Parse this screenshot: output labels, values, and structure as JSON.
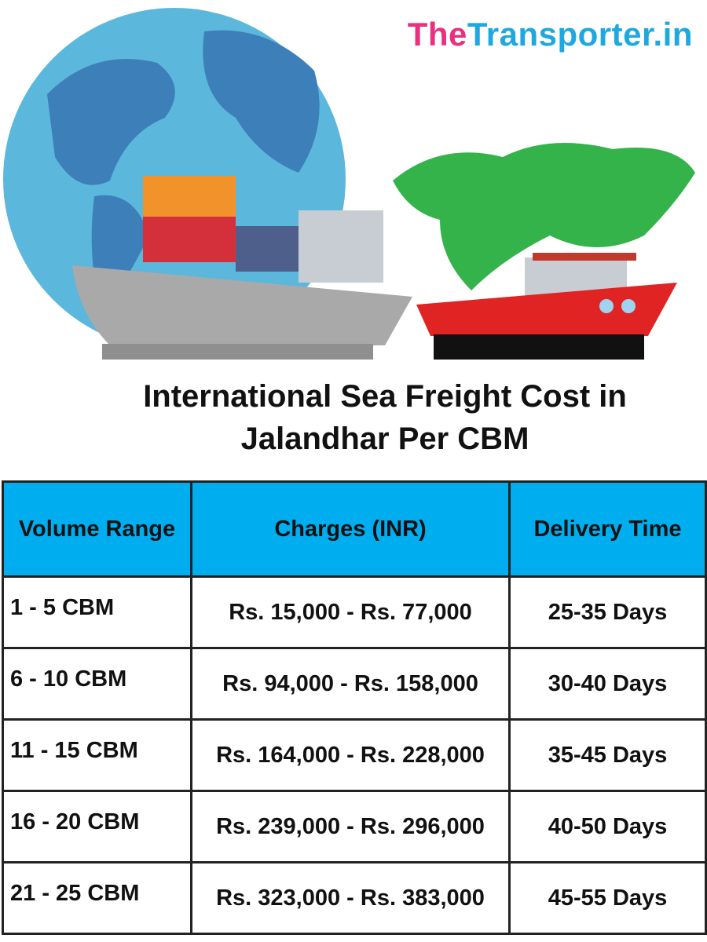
{
  "logo": {
    "first": "The",
    "rest": "Transporter.in"
  },
  "title": [
    "International Sea Freight Cost in",
    "Jalandhar Per CBM"
  ],
  "table": {
    "headers": [
      "Volume Range",
      "Charges (INR)",
      "Delivery Time"
    ],
    "rows": [
      [
        "1 - 5 CBM",
        "Rs. 15,000 - Rs. 77,000",
        "25-35 Days"
      ],
      [
        "6 - 10 CBM",
        "Rs. 94,000 - Rs. 158,000",
        "30-40 Days"
      ],
      [
        "11 - 15 CBM",
        "Rs. 164,000 - Rs. 228,000",
        "35-45 Days"
      ],
      [
        "16 - 20 CBM",
        "Rs. 239,000 - Rs. 296,000",
        "40-50 Days"
      ],
      [
        "21 - 25 CBM",
        "Rs. 323,000 - Rs. 383,000",
        "45-55 Days"
      ]
    ]
  }
}
